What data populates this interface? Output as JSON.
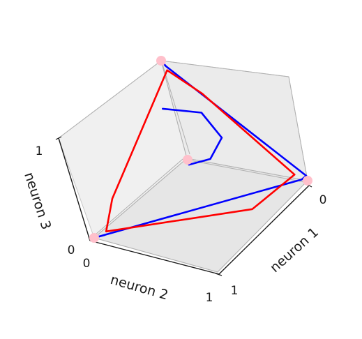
{
  "chart_data": {
    "type": "line",
    "projection": "3d",
    "title": "",
    "axes": {
      "x": {
        "label": "neuron 1",
        "range": [
          0,
          1
        ],
        "ticks": [
          "0",
          "1"
        ]
      },
      "y": {
        "label": "neuron 2",
        "range": [
          0,
          1
        ],
        "ticks": [
          "0",
          "1"
        ]
      },
      "z": {
        "label": "neuron 3",
        "range": [
          0,
          1
        ],
        "ticks": [
          "0",
          "1"
        ]
      }
    },
    "grid": true,
    "series": [
      {
        "color": "#0000ff",
        "points": [
          [
            0,
            0,
            1
          ],
          [
            0.03,
            0,
            0.95
          ],
          [
            1,
            0,
            0.05
          ],
          [
            0.95,
            0,
            0
          ],
          [
            0,
            1,
            0
          ],
          [
            0.05,
            0.95,
            0
          ]
        ]
      },
      {
        "color": "#0000ff",
        "points": [
          [
            0.25,
            0.35,
            0.85
          ],
          [
            0.45,
            0.22,
            0.75
          ],
          [
            0.55,
            0.2,
            0.5
          ],
          [
            0.45,
            0.25,
            0.3
          ],
          [
            0.35,
            0.35,
            0.3
          ],
          [
            0.33,
            0.33,
            0.33
          ]
        ]
      },
      {
        "color": "#ff0000",
        "points": [
          [
            0.05,
            0.02,
            0.93
          ],
          [
            0.3,
            0.02,
            0.75
          ],
          [
            0.92,
            0.02,
            0.06
          ],
          [
            0.85,
            0.4,
            0
          ],
          [
            0.05,
            0.93,
            0.02
          ],
          [
            0.05,
            0.8,
            0.25
          ],
          [
            0.05,
            0.02,
            0.93
          ]
        ]
      }
    ],
    "markers": {
      "color": "#ffc0cb",
      "points": [
        [
          0,
          0,
          1
        ],
        [
          1,
          0,
          0
        ],
        [
          0,
          1,
          0
        ],
        [
          0.33,
          0.33,
          0.33
        ]
      ]
    }
  }
}
